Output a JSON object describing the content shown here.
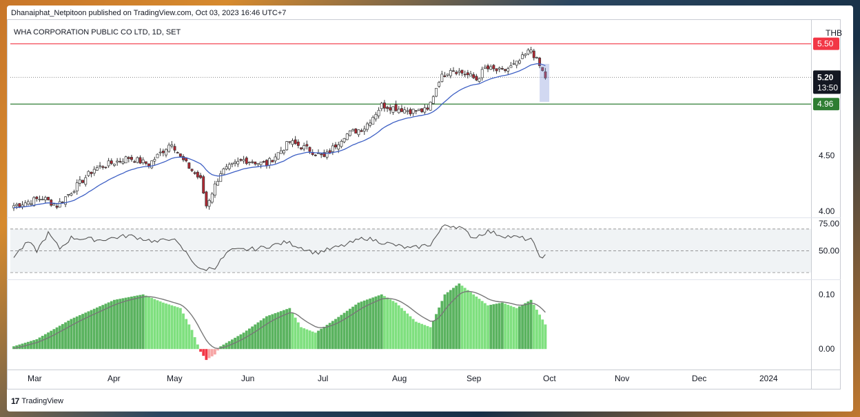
{
  "header": {
    "publisher_line": "Dhanaiphat_Netpitoon published on TradingView.com, Oct 03, 2023 16:46 UTC+7"
  },
  "footer": {
    "brand": "TradingView",
    "brand_mark": "17"
  },
  "chart_data": {
    "type": "candlestick",
    "title": "WHA CORPORATION PUBLIC CO LTD, 1D, SET",
    "currency": "THB",
    "price_axis_ticks": [
      "4.00",
      "4.50"
    ],
    "ylim": [
      3.95,
      5.72
    ],
    "x_axis_labels": [
      "Mar",
      "Apr",
      "May",
      "Jun",
      "Jul",
      "Aug",
      "Sep",
      "Oct",
      "Nov",
      "Dec",
      "2024"
    ],
    "horizontal_lines": [
      {
        "value": 5.5,
        "label": "5.50",
        "color": "#f23645"
      },
      {
        "value": 4.96,
        "label": "4.96",
        "color": "#2e7d32"
      }
    ],
    "last_price": {
      "value": 5.2,
      "label": "5.20",
      "countdown": "13:50"
    },
    "colors": {
      "up": "#ffffff",
      "down": "#b22833",
      "ma": "#3d5fc4",
      "rsi": "#555555",
      "hist_up": "#5ab35f",
      "hist_up_light": "#7fe07f",
      "hist_down": "#f23645",
      "hist_down_light": "#f7a5a5",
      "signal": "#777777"
    },
    "close_anchors": [
      [
        0,
        4.05
      ],
      [
        10,
        4.12
      ],
      [
        15,
        4.05
      ],
      [
        28,
        4.38
      ],
      [
        40,
        4.48
      ],
      [
        47,
        4.42
      ],
      [
        55,
        4.62
      ],
      [
        58,
        4.48
      ],
      [
        65,
        4.28
      ],
      [
        67,
        4.05
      ],
      [
        72,
        4.35
      ],
      [
        80,
        4.46
      ],
      [
        88,
        4.42
      ],
      [
        96,
        4.62
      ],
      [
        103,
        4.55
      ],
      [
        108,
        4.48
      ],
      [
        115,
        4.68
      ],
      [
        122,
        4.75
      ],
      [
        128,
        4.95
      ],
      [
        138,
        4.9
      ],
      [
        144,
        4.9
      ],
      [
        148,
        5.18
      ],
      [
        152,
        5.28
      ],
      [
        158,
        5.22
      ],
      [
        161,
        5.18
      ],
      [
        164,
        5.28
      ],
      [
        170,
        5.25
      ],
      [
        175,
        5.32
      ],
      [
        180,
        5.45
      ],
      [
        185,
        5.2
      ]
    ],
    "candle_count": 186,
    "ma_start": 4.03,
    "rsi": {
      "levels": [
        "75.00",
        "50.00"
      ],
      "guide_lines": [
        70,
        50,
        30
      ],
      "anchors": [
        [
          0,
          45
        ],
        [
          5,
          58
        ],
        [
          8,
          50
        ],
        [
          12,
          66
        ],
        [
          16,
          52
        ],
        [
          20,
          62
        ],
        [
          30,
          60
        ],
        [
          40,
          64
        ],
        [
          50,
          58
        ],
        [
          55,
          62
        ],
        [
          60,
          48
        ],
        [
          65,
          32
        ],
        [
          70,
          35
        ],
        [
          75,
          50
        ],
        [
          85,
          52
        ],
        [
          95,
          58
        ],
        [
          105,
          48
        ],
        [
          115,
          55
        ],
        [
          122,
          62
        ],
        [
          128,
          58
        ],
        [
          138,
          52
        ],
        [
          145,
          56
        ],
        [
          150,
          74
        ],
        [
          155,
          72
        ],
        [
          160,
          62
        ],
        [
          165,
          68
        ],
        [
          170,
          64
        ],
        [
          176,
          62
        ],
        [
          180,
          60
        ],
        [
          184,
          42
        ],
        [
          185,
          45
        ]
      ]
    },
    "macd_hist": {
      "ticks": [
        "0.10",
        "0.00"
      ],
      "range": [
        -0.035,
        0.125
      ],
      "anchors": [
        [
          0,
          0.005
        ],
        [
          8,
          0.018
        ],
        [
          20,
          0.055
        ],
        [
          35,
          0.09
        ],
        [
          45,
          0.1
        ],
        [
          52,
          0.085
        ],
        [
          58,
          0.075
        ],
        [
          62,
          0.035
        ],
        [
          65,
          -0.005
        ],
        [
          67,
          -0.02
        ],
        [
          70,
          -0.01
        ],
        [
          72,
          0.005
        ],
        [
          80,
          0.03
        ],
        [
          88,
          0.06
        ],
        [
          96,
          0.075
        ],
        [
          100,
          0.04
        ],
        [
          105,
          0.03
        ],
        [
          112,
          0.055
        ],
        [
          120,
          0.085
        ],
        [
          128,
          0.1
        ],
        [
          133,
          0.085
        ],
        [
          140,
          0.05
        ],
        [
          145,
          0.04
        ],
        [
          150,
          0.1
        ],
        [
          155,
          0.12
        ],
        [
          160,
          0.1
        ],
        [
          165,
          0.08
        ],
        [
          170,
          0.085
        ],
        [
          175,
          0.075
        ],
        [
          180,
          0.09
        ],
        [
          185,
          0.045
        ]
      ]
    }
  }
}
